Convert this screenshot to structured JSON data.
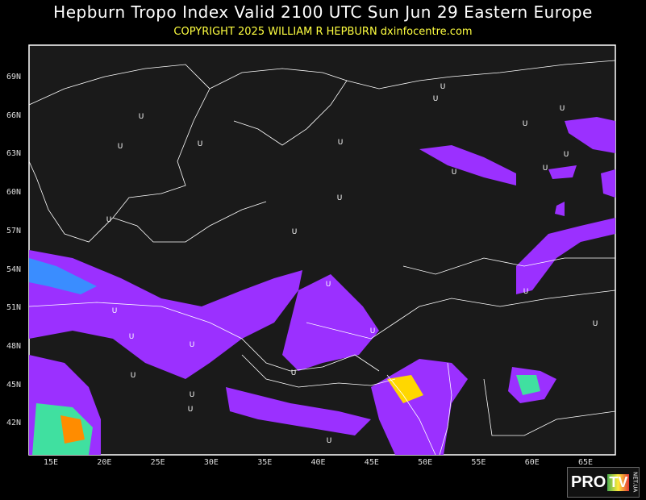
{
  "header": {
    "title": "Hepburn Tropo Index Valid 2100 UTC Sun Jun 29 Eastern Europe",
    "copyright": "COPYRIGHT 2025  WILLIAM R HEPBURN  dxinfocentre.com"
  },
  "map": {
    "lat_labels": [
      "69N",
      "66N",
      "63N",
      "60N",
      "57N",
      "54N",
      "51N",
      "48N",
      "45N",
      "42N"
    ],
    "lon_labels": [
      "15E",
      "20E",
      "25E",
      "30E",
      "35E",
      "40E",
      "45E",
      "50E",
      "55E",
      "60E",
      "65E"
    ],
    "marker_symbol": "U",
    "colors": {
      "background": "#1a1a1a",
      "land_lines": "#ffffff",
      "index_low": "#9b30ff",
      "index_mid": "#3a8dff",
      "index_high1": "#40e0a0",
      "index_high2": "#ffd700",
      "index_high3": "#ff8c00"
    }
  },
  "logo": {
    "brand": "PRO",
    "tv": "TV",
    "domain": "NET.UA"
  }
}
